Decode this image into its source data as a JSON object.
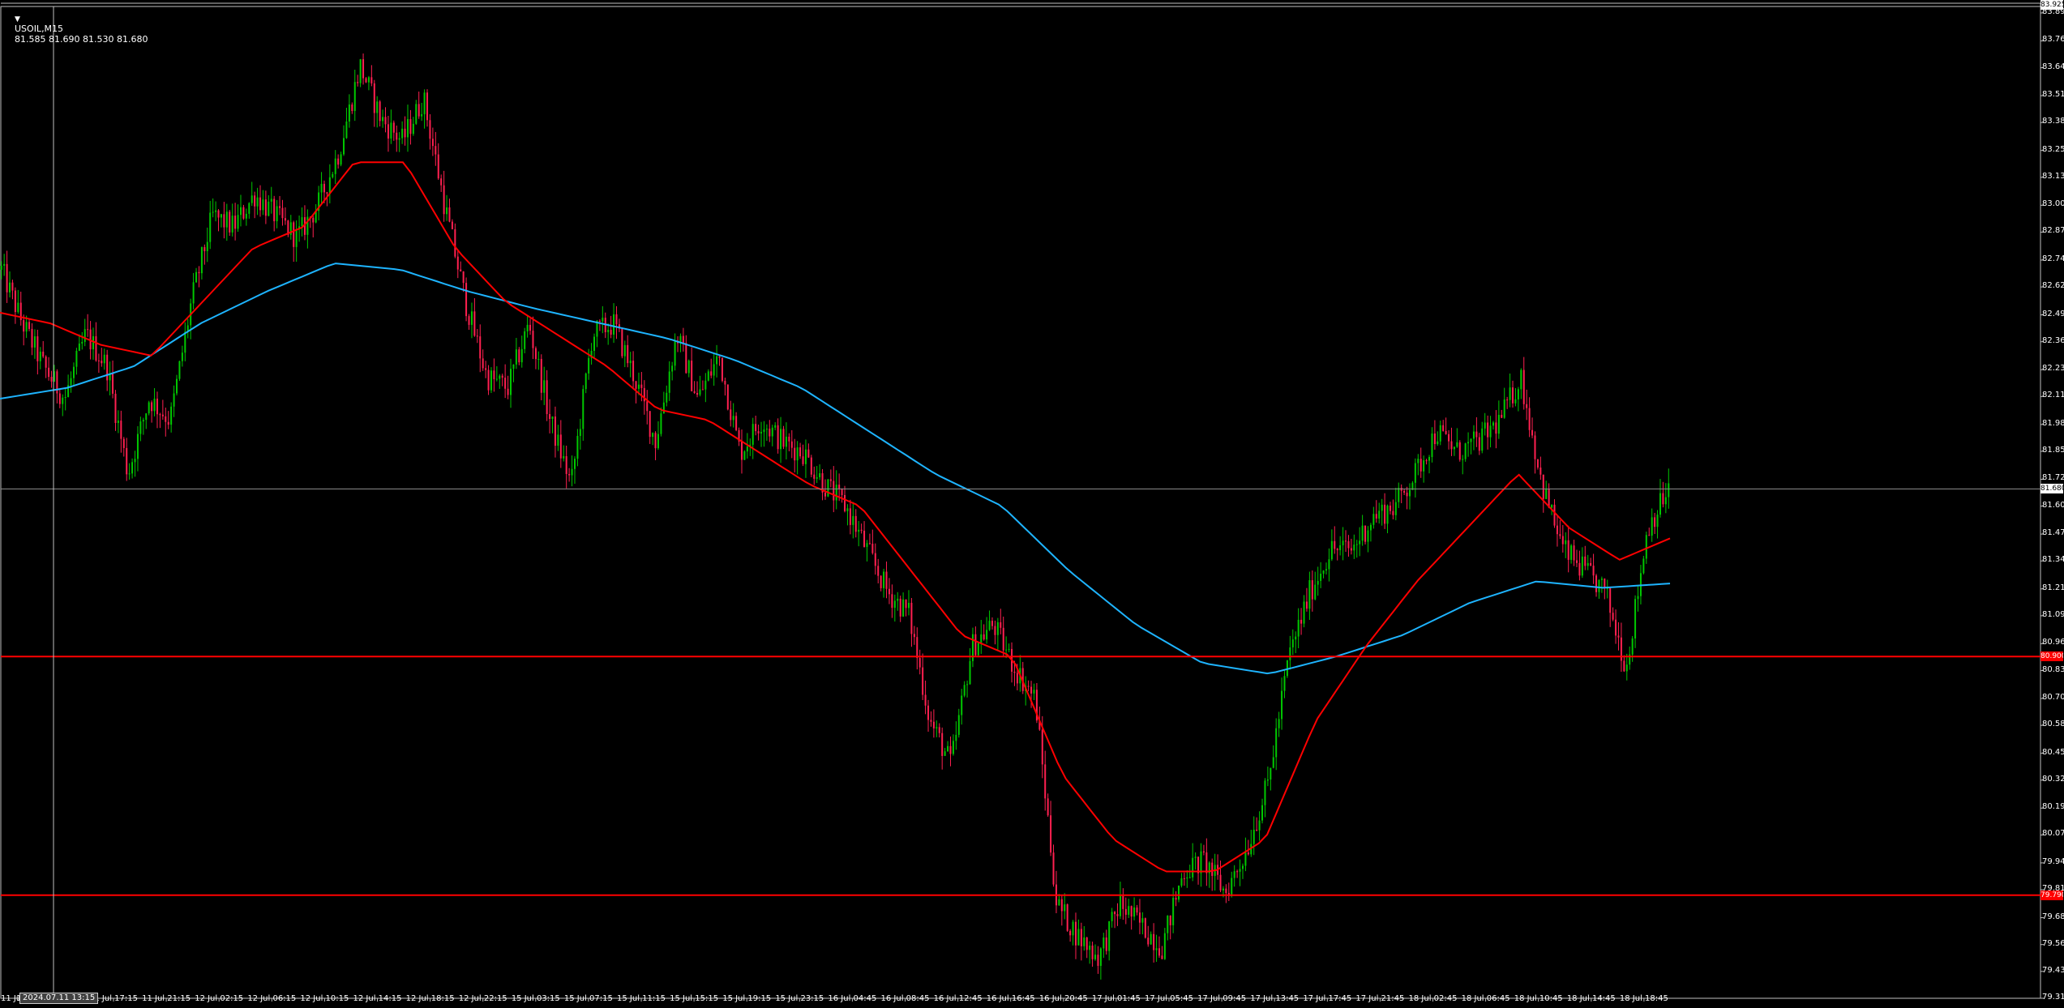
{
  "header": {
    "symbol": "USOIL,M15",
    "ohlc": "81.585 81.690 81.530 81.680",
    "arrow_icon": "triangle-down-icon"
  },
  "price_axis": {
    "ticks": [
      "83.895",
      "83.765",
      "83.640",
      "83.510",
      "83.385",
      "83.255",
      "83.130",
      "83.000",
      "82.875",
      "82.745",
      "82.620",
      "82.490",
      "82.365",
      "82.235",
      "82.110",
      "81.980",
      "81.855",
      "81.725",
      "81.600",
      "81.470",
      "81.345",
      "81.215",
      "81.090",
      "80.960",
      "80.835",
      "80.705",
      "80.580",
      "80.450",
      "80.325",
      "80.195",
      "80.070",
      "79.940",
      "79.815",
      "79.685",
      "79.560",
      "79.435",
      "79.310"
    ],
    "top_tag": "83.925",
    "current_price_tag": "81.680",
    "resistance_tag": "80.900",
    "support_tag": "79.790"
  },
  "time_axis": {
    "ticks": [
      "11 Jul 13:15",
      "11 Jul 17:15",
      "11 Jul 21:15",
      "12 Jul 02:15",
      "12 Jul 06:15",
      "12 Jul 10:15",
      "12 Jul 14:15",
      "12 Jul 18:15",
      "12 Jul 22:15",
      "15 Jul 03:15",
      "15 Jul 07:15",
      "15 Jul 11:15",
      "15 Jul 15:15",
      "15 Jul 19:15",
      "15 Jul 23:15",
      "16 Jul 04:45",
      "16 Jul 08:45",
      "16 Jul 12:45",
      "16 Jul 16:45",
      "16 Jul 20:45",
      "17 Jul 01:45",
      "17 Jul 05:45",
      "17 Jul 09:45",
      "17 Jul 13:45",
      "17 Jul 17:45",
      "17 Jul 21:45",
      "18 Jul 02:45",
      "18 Jul 06:45",
      "18 Jul 10:45",
      "18 Jul 14:45",
      "18 Jul 18:45"
    ],
    "first_label": "11 Jul",
    "crosshair_label": "2024.07.11 13:15"
  },
  "levels": {
    "resistance": 80.9,
    "support": 79.79,
    "current": 81.68
  },
  "colors": {
    "bull": "#00c800",
    "bear": "#ff2050",
    "ma_fast": "#ff0000",
    "ma_slow": "#1eb4ff",
    "level_line": "#ff0000",
    "current_line": "#909090",
    "crosshair": "#c0c0c0"
  },
  "chart_data": {
    "type": "candlestick",
    "ylim": [
      79.31,
      83.925
    ],
    "x_categories": [
      "11 Jul 13:15",
      "11 Jul 17:15",
      "11 Jul 21:15",
      "12 Jul 02:15",
      "12 Jul 06:15",
      "12 Jul 10:15",
      "12 Jul 14:15",
      "12 Jul 18:15",
      "12 Jul 22:15",
      "15 Jul 03:15",
      "15 Jul 07:15",
      "15 Jul 11:15",
      "15 Jul 15:15",
      "15 Jul 19:15",
      "15 Jul 23:15",
      "16 Jul 04:45",
      "16 Jul 08:45",
      "16 Jul 12:45",
      "16 Jul 16:45",
      "16 Jul 20:45",
      "17 Jul 01:45",
      "17 Jul 05:45",
      "17 Jul 09:45",
      "17 Jul 13:45",
      "17 Jul 17:45",
      "17 Jul 21:45",
      "18 Jul 02:45",
      "18 Jul 06:45",
      "18 Jul 10:45",
      "18 Jul 14:45",
      "18 Jul 18:45"
    ],
    "price_path": [
      82.7,
      82.45,
      82.25,
      82.1,
      82.4,
      82.25,
      81.75,
      82.1,
      82.0,
      82.55,
      82.95,
      82.9,
      83.05,
      82.95,
      82.85,
      83.0,
      83.25,
      83.65,
      83.4,
      83.3,
      83.5,
      83.0,
      82.55,
      82.2,
      82.15,
      82.45,
      82.0,
      81.7,
      82.4,
      82.45,
      82.2,
      81.9,
      82.4,
      82.1,
      82.3,
      81.85,
      82.0,
      81.9,
      81.85,
      81.7,
      81.6,
      81.4,
      81.2,
      81.1,
      80.6,
      80.4,
      80.95,
      81.05,
      80.85,
      80.7,
      79.75,
      79.6,
      79.5,
      79.75,
      79.65,
      79.55,
      79.9,
      79.95,
      79.8,
      80.0,
      80.3,
      80.9,
      81.2,
      81.4,
      81.4,
      81.55,
      81.6,
      81.75,
      81.95,
      81.85,
      81.9,
      82.0,
      82.2,
      81.7,
      81.4,
      81.3,
      81.2,
      80.85,
      81.5,
      81.68
    ],
    "ma_fast_path": [
      82.5,
      82.45,
      82.35,
      82.3,
      82.55,
      82.8,
      82.9,
      83.2,
      83.2,
      82.8,
      82.55,
      82.4,
      82.25,
      82.05,
      82.0,
      81.85,
      81.7,
      81.6,
      81.3,
      81.0,
      80.9,
      80.35,
      80.05,
      79.9,
      79.9,
      80.05,
      80.6,
      80.95,
      81.25,
      81.5,
      81.75,
      81.5,
      81.35,
      81.45
    ],
    "ma_slow_path": [
      82.1,
      82.15,
      82.25,
      82.45,
      82.6,
      82.73,
      82.7,
      82.6,
      82.52,
      82.45,
      82.38,
      82.28,
      82.15,
      81.95,
      81.75,
      81.6,
      81.3,
      81.05,
      80.87,
      80.82,
      80.9,
      81.0,
      81.15,
      81.25,
      81.22,
      81.24
    ],
    "series": [
      {
        "name": "",
        "kind": "ma_fast"
      },
      {
        "name": "",
        "kind": "ma_slow"
      }
    ]
  }
}
